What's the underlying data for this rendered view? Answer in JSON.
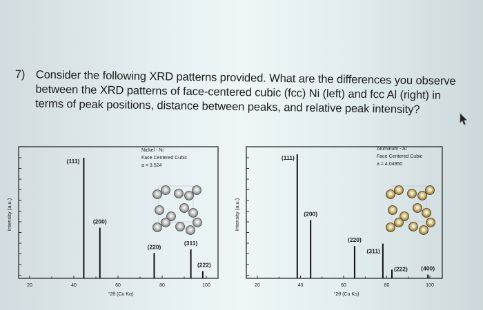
{
  "question": {
    "number": "7)",
    "text": "Consider the following XRD patterns provided. What are the differences you observe between the XRD patterns of face-centered cubic (fcc) Ni (left) and fcc Al (right) in terms of peak positions, distance between peaks, and relative peak intensity?"
  },
  "cursor": {
    "icon": "mouse-pointer-icon"
  },
  "chart_data": [
    {
      "type": "bar",
      "title": "Nickel - Ni",
      "subtitle": "Face Centered Cubic",
      "lattice": "a = 3.524",
      "xlabel": "°2θ (Cu Kα)",
      "ylabel": "Intensity (a.u.)",
      "xlim": [
        15,
        105
      ],
      "xticks": [
        "20",
        "40",
        "60",
        "80",
        "100"
      ],
      "grid": false,
      "peaks": [
        {
          "label": "(111)",
          "two_theta": 44.5,
          "intensity": 100
        },
        {
          "label": "(200)",
          "two_theta": 51.8,
          "intensity": 42
        },
        {
          "label": "(220)",
          "two_theta": 76.4,
          "intensity": 21
        },
        {
          "label": "(311)",
          "two_theta": 93.0,
          "intensity": 24
        },
        {
          "label": "(222)",
          "two_theta": 98.4,
          "intensity": 6
        }
      ],
      "structure_color": "#7a7a7a"
    },
    {
      "type": "bar",
      "title": "Aluminum - Al",
      "subtitle": "Face Centered Cubic",
      "lattice": "a = 4.04950",
      "xlabel": "°2θ (Cu Kα)",
      "ylabel": "Intensity (a.u.)",
      "xlim": [
        15,
        105
      ],
      "xticks": [
        "20",
        "40",
        "60",
        "80",
        "100"
      ],
      "grid": false,
      "peaks": [
        {
          "label": "(111)",
          "two_theta": 38.5,
          "intensity": 100
        },
        {
          "label": "(200)",
          "two_theta": 44.7,
          "intensity": 47
        },
        {
          "label": "(220)",
          "two_theta": 65.1,
          "intensity": 26
        },
        {
          "label": "(311)",
          "two_theta": 78.2,
          "intensity": 28
        },
        {
          "label": "(222)",
          "two_theta": 82.4,
          "intensity": 7
        },
        {
          "label": "(400)",
          "two_theta": 99.1,
          "intensity": 3
        }
      ],
      "structure_color": "#8a6a2a"
    }
  ]
}
